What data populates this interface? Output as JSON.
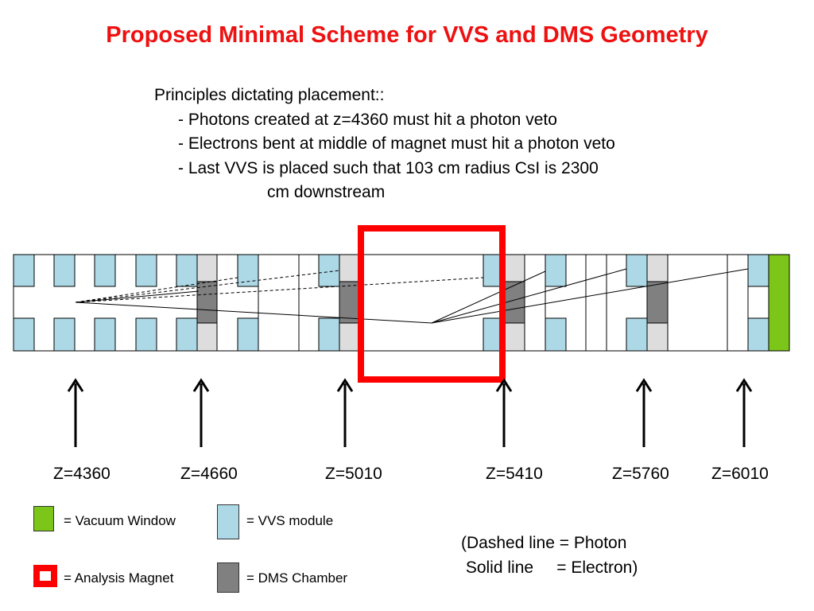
{
  "title": "Proposed Minimal Scheme for VVS and DMS Geometry",
  "principles": {
    "heading": "Principles dictating placement::",
    "items": [
      "- Photons created at z=4360 must hit a photon veto",
      "- Electrons bent at middle of magnet must hit a photon veto",
      "- Last VVS is placed such that 103 cm radius CsI is 2300"
    ],
    "continuation": "cm downstream"
  },
  "z_labels": [
    "Z=4360",
    "Z=4660",
    "Z=5010",
    "Z=5410",
    "Z=5760",
    "Z=6010"
  ],
  "legend": {
    "vacuum_window": "= Vacuum Window",
    "vvs_module": "= VVS module",
    "analysis_magnet": "= Analysis Magnet",
    "dms_chamber": "= DMS Chamber"
  },
  "note": {
    "line1": "(Dashed line = Photon",
    "line2": " Solid line     = Electron)"
  },
  "colors": {
    "title": "#ee1111",
    "vvs": "#add8e6",
    "dms": "#808080",
    "dms_frame": "#dddddd",
    "vacuum_window": "#7cc61a",
    "magnet": "#ff0000"
  }
}
